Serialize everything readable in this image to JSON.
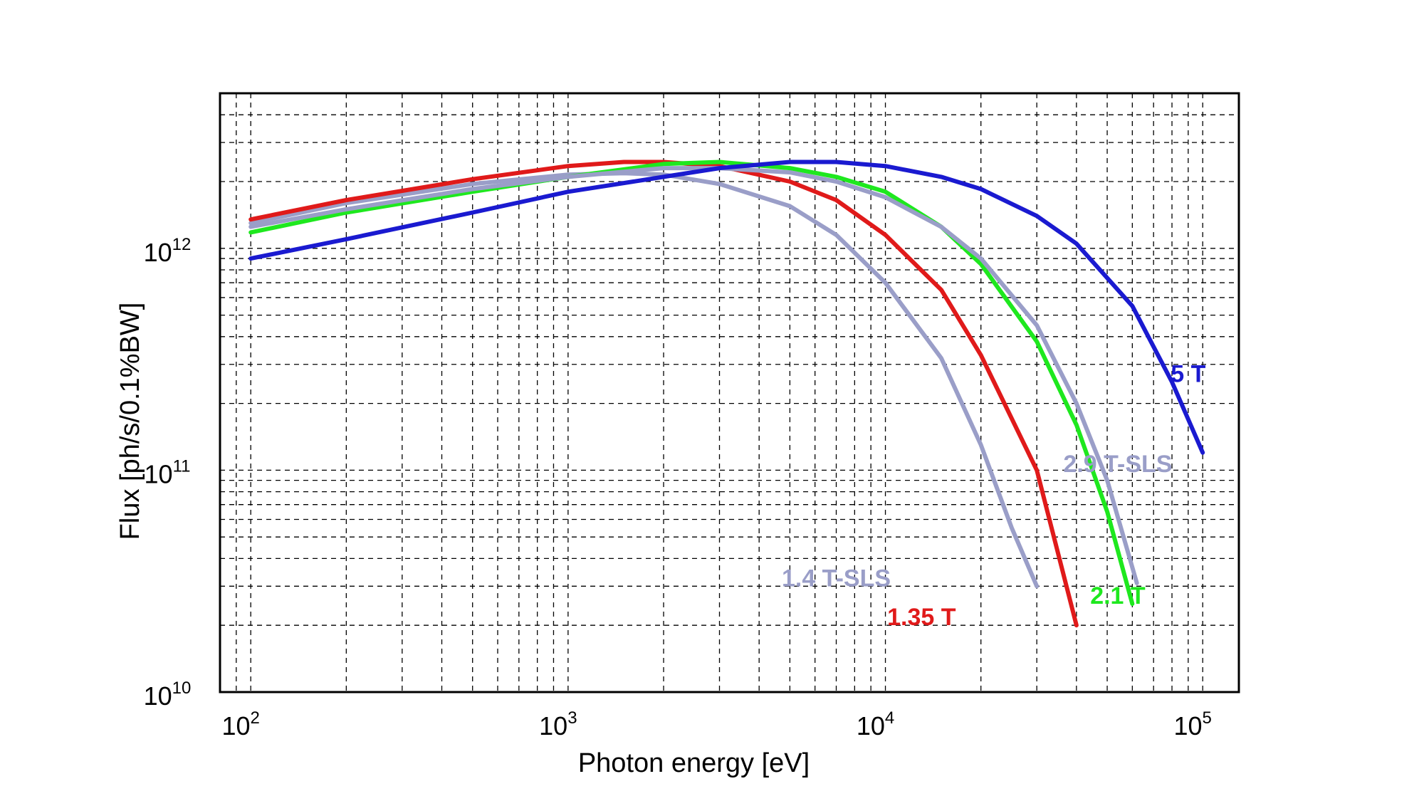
{
  "chart_data": {
    "type": "line",
    "xlabel": "Photon energy [eV]",
    "ylabel": "Flux [ph/s/0.1%BW]",
    "xscale": "log",
    "yscale": "log",
    "xlim": [
      80,
      130000
    ],
    "ylim": [
      10000000000,
      5000000000000
    ],
    "grid": true,
    "x_ticks": [
      {
        "base": "10",
        "exp": "2",
        "value": 100
      },
      {
        "base": "10",
        "exp": "3",
        "value": 1000
      },
      {
        "base": "10",
        "exp": "4",
        "value": 10000
      },
      {
        "base": "10",
        "exp": "5",
        "value": 100000
      }
    ],
    "y_ticks": [
      {
        "base": "10",
        "exp": "10",
        "value": 10000000000
      },
      {
        "base": "10",
        "exp": "11",
        "value": 100000000000
      },
      {
        "base": "10",
        "exp": "12",
        "value": 1000000000000
      }
    ],
    "series": [
      {
        "name": "1.4 T-SLS",
        "color": "#9a9ec8",
        "label_at": [
          7000,
          30000000000
        ],
        "x": [
          100,
          200,
          500,
          1000,
          1500,
          2000,
          3000,
          5000,
          7000,
          10000,
          15000,
          20000,
          25000,
          30000
        ],
        "y": [
          1300000000000,
          1600000000000,
          1950000000000,
          2150000000000,
          2180000000000,
          2150000000000,
          1950000000000,
          1550000000000,
          1150000000000,
          700000000000,
          320000000000,
          130000000000,
          55000000000,
          30000000000
        ]
      },
      {
        "name": "1.35 T",
        "color": "#e01a1a",
        "label_at": [
          13000,
          20000000000
        ],
        "x": [
          100,
          200,
          500,
          1000,
          1500,
          2000,
          3000,
          5000,
          7000,
          10000,
          15000,
          20000,
          30000,
          40000
        ],
        "y": [
          1350000000000,
          1650000000000,
          2050000000000,
          2350000000000,
          2450000000000,
          2450000000000,
          2350000000000,
          2000000000000,
          1650000000000,
          1150000000000,
          650000000000,
          330000000000,
          100000000000,
          20000000000
        ]
      },
      {
        "name": "2.1 T",
        "color": "#1ee81e",
        "label_at": [
          54000,
          25000000000
        ],
        "x": [
          100,
          200,
          500,
          1000,
          2000,
          3000,
          5000,
          7000,
          10000,
          15000,
          20000,
          30000,
          40000,
          50000,
          60000
        ],
        "y": [
          1180000000000,
          1450000000000,
          1800000000000,
          2100000000000,
          2400000000000,
          2450000000000,
          2300000000000,
          2100000000000,
          1800000000000,
          1250000000000,
          850000000000,
          380000000000,
          160000000000,
          65000000000,
          25000000000
        ]
      },
      {
        "name": "2.9 T-SLS",
        "color": "#9a9ec8",
        "label_at": [
          54000,
          98000000000
        ],
        "x": [
          100,
          200,
          500,
          1000,
          2000,
          3000,
          5000,
          7000,
          10000,
          15000,
          20000,
          30000,
          40000,
          50000,
          62000
        ],
        "y": [
          1250000000000,
          1500000000000,
          1850000000000,
          2100000000000,
          2300000000000,
          2300000000000,
          2200000000000,
          2000000000000,
          1700000000000,
          1250000000000,
          900000000000,
          450000000000,
          200000000000,
          90000000000,
          31000000000
        ]
      },
      {
        "name": "5 T",
        "color": "#1a1ad0",
        "label_at": [
          90000,
          250000000000
        ],
        "x": [
          100,
          200,
          500,
          1000,
          2000,
          3000,
          5000,
          7000,
          10000,
          15000,
          20000,
          30000,
          40000,
          60000,
          80000,
          100000
        ],
        "y": [
          900000000000,
          1100000000000,
          1450000000000,
          1800000000000,
          2100000000000,
          2300000000000,
          2450000000000,
          2450000000000,
          2350000000000,
          2100000000000,
          1850000000000,
          1400000000000,
          1050000000000,
          550000000000,
          250000000000,
          120000000000
        ]
      }
    ]
  }
}
